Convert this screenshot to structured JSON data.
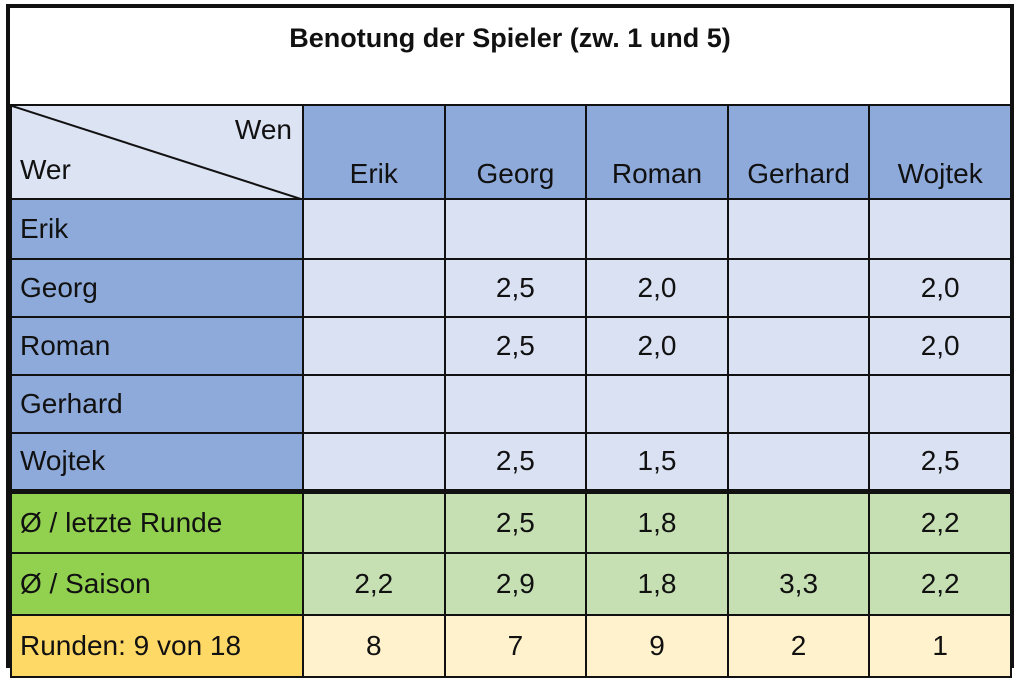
{
  "title": "Benotung der Spieler (zw. 1 und 5)",
  "corner": {
    "top_right": "Wen",
    "bottom_left": "Wer"
  },
  "columns": [
    "Erik",
    "Georg",
    "Roman",
    "Gerhard",
    "Wojtek"
  ],
  "rows": [
    {
      "label": "Erik",
      "values": [
        "",
        "",
        "",
        "",
        ""
      ]
    },
    {
      "label": "Georg",
      "values": [
        "",
        "2,5",
        "2,0",
        "",
        "2,0"
      ]
    },
    {
      "label": "Roman",
      "values": [
        "",
        "2,5",
        "2,0",
        "",
        "2,0"
      ]
    },
    {
      "label": "Gerhard",
      "values": [
        "",
        "",
        "",
        "",
        ""
      ]
    },
    {
      "label": "Wojtek",
      "values": [
        "",
        "2,5",
        "1,5",
        "",
        "2,5"
      ]
    }
  ],
  "summary": {
    "last_round": {
      "label": "Ø / letzte Runde",
      "values": [
        "",
        "2,5",
        "1,8",
        "",
        "2,2"
      ]
    },
    "season": {
      "label": "Ø / Saison",
      "values": [
        "2,2",
        "2,9",
        "1,8",
        "3,3",
        "2,2"
      ]
    },
    "rounds": {
      "label": "Runden: 9 von 18",
      "values": [
        "8",
        "7",
        "9",
        "2",
        "1"
      ]
    }
  },
  "colors": {
    "header_blue": "#8eaadb",
    "cell_blue": "#d9e1f2",
    "green_head": "#92d050",
    "green_cell": "#c6e0b4",
    "yellow_head": "#ffd966",
    "yellow_cell": "#fff2cc"
  }
}
